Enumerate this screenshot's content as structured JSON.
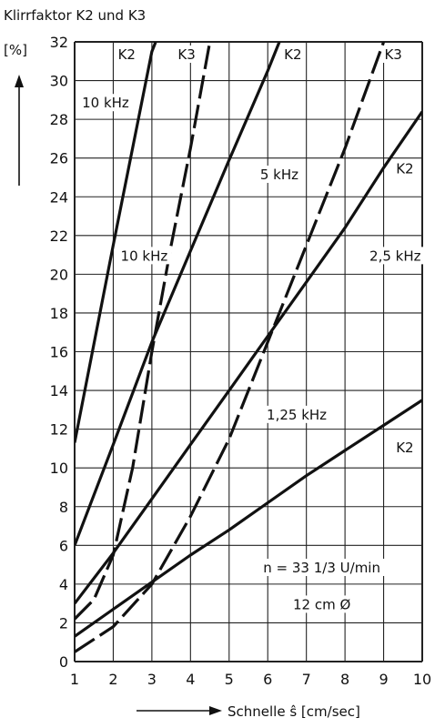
{
  "chart_data": {
    "type": "line",
    "title": "Klirrfaktor K2 und K3",
    "ylabel": "[%]",
    "xlabel": "Schnelle ŝ [cm/sec]",
    "xlim": [
      1,
      10
    ],
    "ylim": [
      0,
      32
    ],
    "x_ticks": [
      1,
      2,
      3,
      4,
      5,
      6,
      7,
      8,
      9,
      10
    ],
    "y_ticks": [
      0,
      2,
      4,
      6,
      8,
      10,
      12,
      14,
      16,
      18,
      20,
      22,
      24,
      26,
      28,
      30,
      32
    ],
    "grid": true,
    "series": [
      {
        "name": "K2 10 kHz",
        "style": "solid",
        "x": [
          1,
          2,
          3,
          3.1
        ],
        "y": [
          11.3,
          21.5,
          31.5,
          32
        ]
      },
      {
        "name": "K3 10 kHz",
        "style": "dashed",
        "x": [
          1,
          1.5,
          2,
          2.5,
          3,
          3.5,
          4,
          4.5
        ],
        "y": [
          2.2,
          3.2,
          5.5,
          10,
          16,
          21.5,
          26.5,
          32
        ]
      },
      {
        "name": "K2 5 kHz",
        "style": "solid",
        "x": [
          1,
          2,
          3,
          4,
          5,
          6,
          6.3
        ],
        "y": [
          6,
          11.2,
          16.5,
          21.2,
          25.9,
          30.5,
          32
        ]
      },
      {
        "name": "K3 5 kHz",
        "style": "dashed",
        "x": [
          1,
          2,
          3,
          4,
          5,
          6,
          7,
          8,
          9
        ],
        "y": [
          0.5,
          1.8,
          4,
          7.5,
          11.5,
          16.5,
          21.5,
          26.5,
          32
        ]
      },
      {
        "name": "K2 2,5 kHz",
        "style": "solid",
        "x": [
          1,
          2,
          3,
          4,
          5,
          6,
          7,
          8,
          9,
          10
        ],
        "y": [
          3,
          5.6,
          8.4,
          11.2,
          14,
          16.8,
          19.6,
          22.4,
          25.5,
          28.4
        ]
      },
      {
        "name": "K2 1,25 kHz",
        "style": "solid",
        "x": [
          1,
          2,
          3,
          4,
          5,
          6,
          7,
          8,
          9,
          10
        ],
        "y": [
          1.3,
          2.7,
          4.1,
          5.5,
          6.8,
          8.2,
          9.6,
          10.9,
          12.2,
          13.5
        ]
      }
    ],
    "annotations": [
      {
        "text": "K2",
        "x": 2.35,
        "y": 31.2
      },
      {
        "text": "K3",
        "x": 3.9,
        "y": 31.2
      },
      {
        "text": "K2",
        "x": 6.65,
        "y": 31.2
      },
      {
        "text": "K3",
        "x": 9.25,
        "y": 31.2
      },
      {
        "text": "10 kHz",
        "x": 1.8,
        "y": 28.7
      },
      {
        "text": "10 kHz",
        "x": 2.8,
        "y": 20.8
      },
      {
        "text": "5 kHz",
        "x": 6.3,
        "y": 25
      },
      {
        "text": "K2",
        "x": 9.55,
        "y": 25.3
      },
      {
        "text": "2,5 kHz",
        "x": 9.3,
        "y": 20.8
      },
      {
        "text": "1,25 kHz",
        "x": 6.75,
        "y": 12.6
      },
      {
        "text": "K2",
        "x": 9.55,
        "y": 10.9
      },
      {
        "text": "n = 33 1/3 U/min",
        "x": 7.4,
        "y": 4.7
      },
      {
        "text": "12 cm Ø",
        "x": 7.4,
        "y": 2.8
      }
    ]
  }
}
